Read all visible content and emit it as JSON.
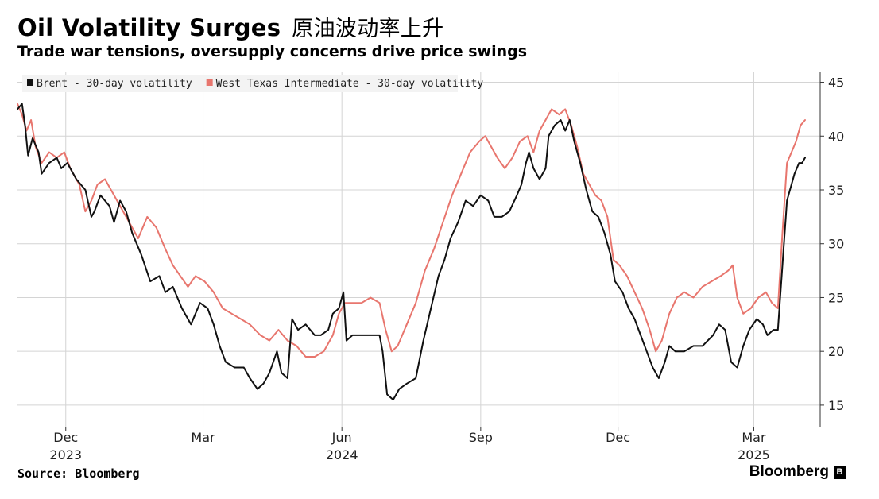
{
  "chart_data": {
    "type": "line",
    "title": "Oil Volatility Surges",
    "title_cn": "原油波动率上升",
    "subtitle": "Trade war tensions, oversupply concerns drive price swings",
    "source": "Source: Bloomberg",
    "brand": "Bloomberg",
    "ylim": [
      13,
      46
    ],
    "yticks": [
      15,
      20,
      25,
      30,
      35,
      40,
      45
    ],
    "grid": true,
    "legend_position": "top-left",
    "x_ticks": [
      {
        "date": "2023-12-01",
        "month": "Dec",
        "year": "2023"
      },
      {
        "date": "2024-03-01",
        "month": "Mar",
        "year": ""
      },
      {
        "date": "2024-06-01",
        "month": "Jun",
        "year": "2024"
      },
      {
        "date": "2024-09-01",
        "month": "Sep",
        "year": ""
      },
      {
        "date": "2024-12-01",
        "month": "Dec",
        "year": ""
      },
      {
        "date": "2025-03-01",
        "month": "Mar",
        "year": "2025"
      }
    ],
    "xlim": [
      "2023-10-30",
      "2025-04-14"
    ],
    "series": [
      {
        "name": "Brent - 30-day volatility",
        "color": "#111111",
        "points": [
          [
            "2023-10-30",
            42.5
          ],
          [
            "2023-11-02",
            43.0
          ],
          [
            "2023-11-04",
            41.0
          ],
          [
            "2023-11-06",
            38.2
          ],
          [
            "2023-11-09",
            39.8
          ],
          [
            "2023-11-13",
            38.5
          ],
          [
            "2023-11-15",
            36.5
          ],
          [
            "2023-11-20",
            37.5
          ],
          [
            "2023-11-25",
            38.0
          ],
          [
            "2023-11-28",
            37.0
          ],
          [
            "2023-12-02",
            37.5
          ],
          [
            "2023-12-08",
            36.0
          ],
          [
            "2023-12-14",
            35.0
          ],
          [
            "2023-12-18",
            32.5
          ],
          [
            "2023-12-20",
            33.0
          ],
          [
            "2023-12-24",
            34.5
          ],
          [
            "2023-12-30",
            33.5
          ],
          [
            "2024-01-02",
            32.0
          ],
          [
            "2024-01-06",
            34.0
          ],
          [
            "2024-01-10",
            33.0
          ],
          [
            "2024-01-14",
            31.0
          ],
          [
            "2024-01-20",
            29.0
          ],
          [
            "2024-01-26",
            26.5
          ],
          [
            "2024-02-01",
            27.0
          ],
          [
            "2024-02-05",
            25.5
          ],
          [
            "2024-02-10",
            26.0
          ],
          [
            "2024-02-16",
            24.0
          ],
          [
            "2024-02-22",
            22.5
          ],
          [
            "2024-02-28",
            24.5
          ],
          [
            "2024-03-04",
            24.0
          ],
          [
            "2024-03-08",
            22.5
          ],
          [
            "2024-03-12",
            20.5
          ],
          [
            "2024-03-16",
            19.0
          ],
          [
            "2024-03-22",
            18.5
          ],
          [
            "2024-03-28",
            18.5
          ],
          [
            "2024-04-01",
            17.5
          ],
          [
            "2024-04-06",
            16.5
          ],
          [
            "2024-04-10",
            17.0
          ],
          [
            "2024-04-14",
            18.0
          ],
          [
            "2024-04-19",
            20.0
          ],
          [
            "2024-04-22",
            18.0
          ],
          [
            "2024-04-26",
            17.5
          ],
          [
            "2024-04-29",
            23.0
          ],
          [
            "2024-05-03",
            22.0
          ],
          [
            "2024-05-08",
            22.5
          ],
          [
            "2024-05-14",
            21.5
          ],
          [
            "2024-05-18",
            21.5
          ],
          [
            "2024-05-23",
            22.0
          ],
          [
            "2024-05-26",
            23.5
          ],
          [
            "2024-05-30",
            24.0
          ],
          [
            "2024-06-02",
            25.5
          ],
          [
            "2024-06-04",
            21.0
          ],
          [
            "2024-06-08",
            21.5
          ],
          [
            "2024-06-14",
            21.5
          ],
          [
            "2024-06-20",
            21.5
          ],
          [
            "2024-06-26",
            21.5
          ],
          [
            "2024-06-28",
            20.0
          ],
          [
            "2024-07-01",
            16.0
          ],
          [
            "2024-07-05",
            15.5
          ],
          [
            "2024-07-09",
            16.5
          ],
          [
            "2024-07-14",
            17.0
          ],
          [
            "2024-07-20",
            17.5
          ],
          [
            "2024-07-25",
            21.0
          ],
          [
            "2024-07-30",
            24.0
          ],
          [
            "2024-08-04",
            27.0
          ],
          [
            "2024-08-08",
            28.5
          ],
          [
            "2024-08-12",
            30.5
          ],
          [
            "2024-08-17",
            32.0
          ],
          [
            "2024-08-22",
            34.0
          ],
          [
            "2024-08-27",
            33.5
          ],
          [
            "2024-09-01",
            34.5
          ],
          [
            "2024-09-06",
            34.0
          ],
          [
            "2024-09-10",
            32.5
          ],
          [
            "2024-09-15",
            32.5
          ],
          [
            "2024-09-20",
            33.0
          ],
          [
            "2024-09-25",
            34.5
          ],
          [
            "2024-09-28",
            35.5
          ],
          [
            "2024-10-01",
            37.5
          ],
          [
            "2024-10-03",
            38.5
          ],
          [
            "2024-10-06",
            37.0
          ],
          [
            "2024-10-10",
            36.0
          ],
          [
            "2024-10-14",
            37.0
          ],
          [
            "2024-10-16",
            40.0
          ],
          [
            "2024-10-20",
            41.0
          ],
          [
            "2024-10-24",
            41.5
          ],
          [
            "2024-10-27",
            40.5
          ],
          [
            "2024-10-30",
            41.5
          ],
          [
            "2024-11-02",
            39.5
          ],
          [
            "2024-11-06",
            37.5
          ],
          [
            "2024-11-10",
            35.0
          ],
          [
            "2024-11-14",
            33.0
          ],
          [
            "2024-11-18",
            32.5
          ],
          [
            "2024-11-22",
            31.0
          ],
          [
            "2024-11-26",
            29.0
          ],
          [
            "2024-11-29",
            26.5
          ],
          [
            "2024-12-04",
            25.5
          ],
          [
            "2024-12-08",
            24.0
          ],
          [
            "2024-12-12",
            23.0
          ],
          [
            "2024-12-16",
            21.5
          ],
          [
            "2024-12-20",
            20.0
          ],
          [
            "2024-12-24",
            18.5
          ],
          [
            "2024-12-28",
            17.5
          ],
          [
            "2025-01-01",
            19.0
          ],
          [
            "2025-01-04",
            20.5
          ],
          [
            "2025-01-08",
            20.0
          ],
          [
            "2025-01-14",
            20.0
          ],
          [
            "2025-01-20",
            20.5
          ],
          [
            "2025-01-26",
            20.5
          ],
          [
            "2025-02-02",
            21.5
          ],
          [
            "2025-02-06",
            22.5
          ],
          [
            "2025-02-10",
            22.0
          ],
          [
            "2025-02-14",
            19.0
          ],
          [
            "2025-02-18",
            18.5
          ],
          [
            "2025-02-22",
            20.5
          ],
          [
            "2025-02-26",
            22.0
          ],
          [
            "2025-03-03",
            23.0
          ],
          [
            "2025-03-07",
            22.5
          ],
          [
            "2025-03-10",
            21.5
          ],
          [
            "2025-03-14",
            22.0
          ],
          [
            "2025-03-17",
            22.0
          ],
          [
            "2025-03-20",
            28.0
          ],
          [
            "2025-03-23",
            34.0
          ],
          [
            "2025-03-25",
            35.0
          ],
          [
            "2025-03-28",
            36.5
          ],
          [
            "2025-03-31",
            37.5
          ],
          [
            "2025-04-02",
            37.5
          ],
          [
            "2025-04-04",
            38.0
          ]
        ]
      },
      {
        "name": "West Texas Intermediate - 30-day volatility",
        "color": "#e8766e",
        "points": [
          [
            "2023-10-30",
            43.0
          ],
          [
            "2023-11-02",
            42.0
          ],
          [
            "2023-11-05",
            40.5
          ],
          [
            "2023-11-08",
            41.5
          ],
          [
            "2023-11-11",
            39.0
          ],
          [
            "2023-11-15",
            37.5
          ],
          [
            "2023-11-20",
            38.5
          ],
          [
            "2023-11-25",
            38.0
          ],
          [
            "2023-11-30",
            38.5
          ],
          [
            "2023-12-04",
            37.0
          ],
          [
            "2023-12-10",
            35.5
          ],
          [
            "2023-12-14",
            33.0
          ],
          [
            "2023-12-18",
            34.0
          ],
          [
            "2023-12-22",
            35.5
          ],
          [
            "2023-12-27",
            36.0
          ],
          [
            "2024-01-02",
            34.5
          ],
          [
            "2024-01-06",
            33.5
          ],
          [
            "2024-01-12",
            32.0
          ],
          [
            "2024-01-18",
            30.5
          ],
          [
            "2024-01-24",
            32.5
          ],
          [
            "2024-01-30",
            31.5
          ],
          [
            "2024-02-05",
            29.5
          ],
          [
            "2024-02-10",
            28.0
          ],
          [
            "2024-02-15",
            27.0
          ],
          [
            "2024-02-20",
            26.0
          ],
          [
            "2024-02-25",
            27.0
          ],
          [
            "2024-03-02",
            26.5
          ],
          [
            "2024-03-08",
            25.5
          ],
          [
            "2024-03-14",
            24.0
          ],
          [
            "2024-03-20",
            23.5
          ],
          [
            "2024-03-26",
            23.0
          ],
          [
            "2024-04-01",
            22.5
          ],
          [
            "2024-04-08",
            21.5
          ],
          [
            "2024-04-14",
            21.0
          ],
          [
            "2024-04-20",
            22.0
          ],
          [
            "2024-04-26",
            21.0
          ],
          [
            "2024-05-02",
            20.5
          ],
          [
            "2024-05-08",
            19.5
          ],
          [
            "2024-05-14",
            19.5
          ],
          [
            "2024-05-20",
            20.0
          ],
          [
            "2024-05-26",
            21.5
          ],
          [
            "2024-05-30",
            23.5
          ],
          [
            "2024-06-03",
            24.5
          ],
          [
            "2024-06-08",
            24.5
          ],
          [
            "2024-06-14",
            24.5
          ],
          [
            "2024-06-20",
            25.0
          ],
          [
            "2024-06-26",
            24.5
          ],
          [
            "2024-06-30",
            22.0
          ],
          [
            "2024-07-04",
            20.0
          ],
          [
            "2024-07-08",
            20.5
          ],
          [
            "2024-07-14",
            22.5
          ],
          [
            "2024-07-20",
            24.5
          ],
          [
            "2024-07-26",
            27.5
          ],
          [
            "2024-08-01",
            29.5
          ],
          [
            "2024-08-07",
            32.0
          ],
          [
            "2024-08-13",
            34.5
          ],
          [
            "2024-08-19",
            36.5
          ],
          [
            "2024-08-25",
            38.5
          ],
          [
            "2024-08-31",
            39.5
          ],
          [
            "2024-09-04",
            40.0
          ],
          [
            "2024-09-08",
            39.0
          ],
          [
            "2024-09-12",
            38.0
          ],
          [
            "2024-09-17",
            37.0
          ],
          [
            "2024-09-22",
            38.0
          ],
          [
            "2024-09-27",
            39.5
          ],
          [
            "2024-10-02",
            40.0
          ],
          [
            "2024-10-06",
            38.5
          ],
          [
            "2024-10-10",
            40.5
          ],
          [
            "2024-10-14",
            41.5
          ],
          [
            "2024-10-18",
            42.5
          ],
          [
            "2024-10-23",
            42.0
          ],
          [
            "2024-10-27",
            42.5
          ],
          [
            "2024-10-31",
            41.0
          ],
          [
            "2024-11-04",
            39.0
          ],
          [
            "2024-11-08",
            36.5
          ],
          [
            "2024-11-12",
            35.5
          ],
          [
            "2024-11-16",
            34.5
          ],
          [
            "2024-11-20",
            34.0
          ],
          [
            "2024-11-24",
            32.5
          ],
          [
            "2024-11-28",
            28.5
          ],
          [
            "2024-12-02",
            28.0
          ],
          [
            "2024-12-07",
            27.0
          ],
          [
            "2024-12-12",
            25.5
          ],
          [
            "2024-12-17",
            24.0
          ],
          [
            "2024-12-22",
            22.0
          ],
          [
            "2024-12-26",
            20.0
          ],
          [
            "2024-12-30",
            21.0
          ],
          [
            "2025-01-04",
            23.5
          ],
          [
            "2025-01-09",
            25.0
          ],
          [
            "2025-01-14",
            25.5
          ],
          [
            "2025-01-20",
            25.0
          ],
          [
            "2025-01-26",
            26.0
          ],
          [
            "2025-02-01",
            26.5
          ],
          [
            "2025-02-07",
            27.0
          ],
          [
            "2025-02-12",
            27.5
          ],
          [
            "2025-02-15",
            28.0
          ],
          [
            "2025-02-18",
            25.0
          ],
          [
            "2025-02-22",
            23.5
          ],
          [
            "2025-02-27",
            24.0
          ],
          [
            "2025-03-04",
            25.0
          ],
          [
            "2025-03-09",
            25.5
          ],
          [
            "2025-03-13",
            24.5
          ],
          [
            "2025-03-17",
            24.0
          ],
          [
            "2025-03-20",
            31.0
          ],
          [
            "2025-03-23",
            37.5
          ],
          [
            "2025-03-26",
            38.5
          ],
          [
            "2025-03-29",
            39.5
          ],
          [
            "2025-04-01",
            41.0
          ],
          [
            "2025-04-04",
            41.5
          ]
        ]
      }
    ]
  }
}
